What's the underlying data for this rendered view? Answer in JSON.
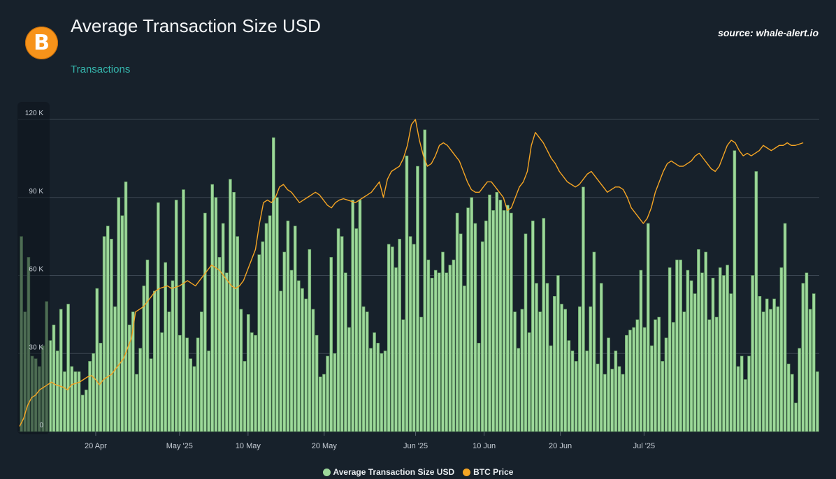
{
  "header": {
    "title": "Average Transaction Size USD",
    "subtitle": "Transactions",
    "source": "source: whale-alert.io",
    "logo_glyph": "B"
  },
  "colors": {
    "background": "#17212b",
    "bar": "#9dd89a",
    "bar_edge": "#5e9a5e",
    "line": "#f5a524",
    "grid": "#3b4652",
    "subtitle": "#35b6ad"
  },
  "chart_data": {
    "type": "bar",
    "title": "Average Transaction Size USD",
    "x_start": "2025-04-10",
    "x_end": "2025-07-24",
    "ylim": [
      0,
      120000
    ],
    "y_ticks": [
      {
        "value": 0,
        "label": "0"
      },
      {
        "value": 30000,
        "label": "30 K"
      },
      {
        "value": 60000,
        "label": "60 K"
      },
      {
        "value": 90000,
        "label": "90 K"
      },
      {
        "value": 120000,
        "label": "120 K"
      }
    ],
    "x_ticks": [
      {
        "date": "2025-04-20",
        "label": "20 Apr"
      },
      {
        "date": "2025-05-01",
        "label": "May '25"
      },
      {
        "date": "2025-05-10",
        "label": "10 May"
      },
      {
        "date": "2025-05-20",
        "label": "20 May"
      },
      {
        "date": "2025-06-01",
        "label": "Jun '25"
      },
      {
        "date": "2025-06-10",
        "label": "10 Jun"
      },
      {
        "date": "2025-06-20",
        "label": "20 Jun"
      },
      {
        "date": "2025-07-01",
        "label": "Jul '25"
      }
    ],
    "legend_position": "bottom-center",
    "series": [
      {
        "name": "Average Transaction Size USD",
        "kind": "bar",
        "values": [
          75000,
          46000,
          67000,
          29000,
          28000,
          25000,
          33000,
          50000,
          35000,
          41000,
          31000,
          47000,
          23000,
          49000,
          25000,
          23000,
          23000,
          14000,
          16000,
          27000,
          30000,
          55000,
          34000,
          75000,
          79000,
          74000,
          48000,
          90000,
          83000,
          96000,
          41000,
          46000,
          22000,
          32000,
          56000,
          66000,
          28000,
          54000,
          88000,
          38000,
          65000,
          46000,
          58000,
          89000,
          37000,
          93000,
          36000,
          28000,
          25000,
          36000,
          46000,
          84000,
          31000,
          95000,
          90000,
          67000,
          80000,
          61000,
          97000,
          92000,
          75000,
          47000,
          27000,
          45000,
          38000,
          37000,
          68000,
          73000,
          80000,
          83000,
          113000,
          90000,
          54000,
          69000,
          81000,
          62000,
          79000,
          58000,
          55000,
          51000,
          70000,
          47000,
          37000,
          21000,
          22000,
          29000,
          67000,
          30000,
          78000,
          75000,
          61000,
          40000,
          89000,
          78000,
          89000,
          48000,
          46000,
          32000,
          38000,
          34000,
          30000,
          31000,
          72000,
          71000,
          63000,
          74000,
          43000,
          106000,
          75000,
          72000,
          102000,
          44000,
          116000,
          66000,
          59000,
          62000,
          61000,
          69000,
          61000,
          64000,
          66000,
          84000,
          76000,
          56000,
          86000,
          90000,
          80000,
          34000,
          73000,
          81000,
          91000,
          85000,
          92000,
          89000,
          85000,
          87000,
          84000,
          46000,
          32000,
          47000,
          76000,
          38000,
          81000,
          57000,
          46000,
          82000,
          57000,
          33000,
          52000,
          60000,
          49000,
          47000,
          35000,
          31000,
          27000,
          48000,
          94000,
          31000,
          48000,
          69000,
          26000,
          57000,
          22000,
          36000,
          24000,
          31000,
          25000,
          22000,
          37000,
          39000,
          40000,
          43000,
          62000,
          40000,
          80000,
          33000,
          43000,
          44000,
          27000,
          36000,
          63000,
          42000,
          66000,
          66000,
          46000,
          62000,
          58000,
          53000,
          70000,
          61000,
          69000,
          43000,
          59000,
          44000,
          63000,
          60000,
          64000,
          53000,
          108000,
          25000,
          29000,
          20000,
          29000,
          60000,
          100000,
          52000,
          46000,
          51000,
          47000,
          51000,
          48000,
          63000,
          80000,
          26000,
          22000,
          11000,
          32000,
          57000,
          61000,
          47000,
          53000,
          23000
        ]
      },
      {
        "name": "BTC Price",
        "kind": "line",
        "points": [
          [
            0,
            2000
          ],
          [
            0.5,
            5000
          ],
          [
            1,
            10000
          ],
          [
            1.5,
            13000
          ],
          [
            2,
            14000
          ],
          [
            2.5,
            16000
          ],
          [
            3,
            17000
          ],
          [
            3.5,
            18000
          ],
          [
            4,
            19000
          ],
          [
            4.5,
            18000
          ],
          [
            5,
            17500
          ],
          [
            5.5,
            17000
          ],
          [
            6,
            16000
          ],
          [
            6.5,
            18000
          ],
          [
            7,
            18500
          ],
          [
            7.5,
            19000
          ],
          [
            8,
            20000
          ],
          [
            8.5,
            21000
          ],
          [
            9,
            21500
          ],
          [
            9.5,
            20000
          ],
          [
            10,
            18000
          ],
          [
            10.5,
            20000
          ],
          [
            11,
            21000
          ],
          [
            11.5,
            22000
          ],
          [
            12,
            24000
          ],
          [
            12.5,
            26000
          ],
          [
            13,
            28000
          ],
          [
            13.5,
            32000
          ],
          [
            14,
            36000
          ],
          [
            14.5,
            46000
          ],
          [
            15,
            47000
          ],
          [
            15.5,
            48000
          ],
          [
            16,
            50000
          ],
          [
            16.5,
            52000
          ],
          [
            17,
            54000
          ],
          [
            17.5,
            55000
          ],
          [
            18,
            55500
          ],
          [
            18.5,
            56000
          ],
          [
            19,
            55000
          ],
          [
            19.5,
            55500
          ],
          [
            20,
            56000
          ],
          [
            20.5,
            57000
          ],
          [
            21,
            58000
          ],
          [
            21.5,
            57000
          ],
          [
            22,
            56000
          ],
          [
            22.5,
            58000
          ],
          [
            23,
            60000
          ],
          [
            23.5,
            62000
          ],
          [
            24,
            64000
          ],
          [
            24.5,
            63000
          ],
          [
            25,
            62000
          ],
          [
            25.5,
            60000
          ],
          [
            26,
            58000
          ],
          [
            26.5,
            56000
          ],
          [
            27,
            55000
          ],
          [
            27.5,
            56000
          ],
          [
            28,
            58000
          ],
          [
            28.5,
            62000
          ],
          [
            29,
            66000
          ],
          [
            29.5,
            70000
          ],
          [
            30,
            80000
          ],
          [
            30.5,
            88000
          ],
          [
            31,
            89000
          ],
          [
            31.5,
            88000
          ],
          [
            32,
            90000
          ],
          [
            32.5,
            94000
          ],
          [
            33,
            95000
          ],
          [
            33.5,
            93000
          ],
          [
            34,
            92000
          ],
          [
            34.5,
            90000
          ],
          [
            35,
            88000
          ],
          [
            35.5,
            89000
          ],
          [
            36,
            90000
          ],
          [
            36.5,
            91000
          ],
          [
            37,
            92000
          ],
          [
            37.5,
            91000
          ],
          [
            38,
            89000
          ],
          [
            38.5,
            87000
          ],
          [
            39,
            86000
          ],
          [
            39.5,
            88000
          ],
          [
            40,
            89000
          ],
          [
            40.5,
            89500
          ],
          [
            41,
            89000
          ],
          [
            41.5,
            88500
          ],
          [
            42,
            88000
          ],
          [
            42.5,
            89000
          ],
          [
            43,
            90000
          ],
          [
            43.5,
            91000
          ],
          [
            44,
            92000
          ],
          [
            44.5,
            94000
          ],
          [
            45,
            96000
          ],
          [
            45.5,
            90000
          ],
          [
            46,
            97000
          ],
          [
            46.5,
            100000
          ],
          [
            47,
            101000
          ],
          [
            47.5,
            102000
          ],
          [
            48,
            105000
          ],
          [
            48.5,
            110000
          ],
          [
            49,
            118000
          ],
          [
            49.5,
            120000
          ],
          [
            50,
            112000
          ],
          [
            50.5,
            106000
          ],
          [
            51,
            102000
          ],
          [
            51.5,
            103000
          ],
          [
            52,
            106000
          ],
          [
            52.5,
            110000
          ],
          [
            53,
            111000
          ],
          [
            53.5,
            110000
          ],
          [
            54,
            108000
          ],
          [
            54.5,
            106000
          ],
          [
            55,
            104000
          ],
          [
            55.5,
            100000
          ],
          [
            56,
            96000
          ],
          [
            56.5,
            93000
          ],
          [
            57,
            92000
          ],
          [
            57.5,
            92000
          ],
          [
            58,
            94000
          ],
          [
            58.5,
            96000
          ],
          [
            59,
            96000
          ],
          [
            59.5,
            94000
          ],
          [
            60,
            92000
          ],
          [
            60.5,
            90000
          ],
          [
            61,
            85000
          ],
          [
            61.5,
            86000
          ],
          [
            62,
            90000
          ],
          [
            62.5,
            94000
          ],
          [
            63,
            96000
          ],
          [
            63.5,
            100000
          ],
          [
            64,
            110000
          ],
          [
            64.5,
            115000
          ],
          [
            65,
            113000
          ],
          [
            65.5,
            111000
          ],
          [
            66,
            108000
          ],
          [
            66.5,
            105000
          ],
          [
            67,
            103000
          ],
          [
            67.5,
            100000
          ],
          [
            68,
            98000
          ],
          [
            68.5,
            96000
          ],
          [
            69,
            95000
          ],
          [
            69.5,
            94000
          ],
          [
            70,
            95000
          ],
          [
            70.5,
            97000
          ],
          [
            71,
            99000
          ],
          [
            71.5,
            100000
          ],
          [
            72,
            98000
          ],
          [
            72.5,
            96000
          ],
          [
            73,
            94000
          ],
          [
            73.5,
            92000
          ],
          [
            74,
            93000
          ],
          [
            74.5,
            94000
          ],
          [
            75,
            94000
          ],
          [
            75.5,
            93000
          ],
          [
            76,
            90000
          ],
          [
            76.5,
            86000
          ],
          [
            77,
            84000
          ],
          [
            77.5,
            82000
          ],
          [
            78,
            80000
          ],
          [
            78.5,
            82000
          ],
          [
            79,
            86000
          ],
          [
            79.5,
            92000
          ],
          [
            80,
            96000
          ],
          [
            80.5,
            100000
          ],
          [
            81,
            103000
          ],
          [
            81.5,
            104000
          ],
          [
            82,
            103000
          ],
          [
            82.5,
            102000
          ],
          [
            83,
            102000
          ],
          [
            83.5,
            103000
          ],
          [
            84,
            104000
          ],
          [
            84.5,
            106000
          ],
          [
            85,
            107000
          ],
          [
            85.5,
            105000
          ],
          [
            86,
            103000
          ],
          [
            86.5,
            101000
          ],
          [
            87,
            100000
          ],
          [
            87.5,
            102000
          ],
          [
            88,
            106000
          ],
          [
            88.5,
            110000
          ],
          [
            89,
            112000
          ],
          [
            89.5,
            111000
          ],
          [
            90,
            108000
          ],
          [
            90.5,
            106000
          ],
          [
            91,
            107000
          ],
          [
            91.5,
            106000
          ],
          [
            92,
            107000
          ],
          [
            92.5,
            108000
          ],
          [
            93,
            110000
          ],
          [
            93.5,
            109000
          ],
          [
            94,
            108000
          ],
          [
            94.5,
            109000
          ],
          [
            95,
            110000
          ],
          [
            95.5,
            110000
          ],
          [
            96,
            111000
          ],
          [
            96.5,
            110000
          ],
          [
            97,
            110000
          ],
          [
            97.5,
            110500
          ],
          [
            98,
            111000
          ]
        ]
      }
    ]
  },
  "legend": [
    {
      "label": "Average Transaction Size USD",
      "color": "#9dd89a"
    },
    {
      "label": "BTC Price",
      "color": "#f5a524"
    }
  ]
}
